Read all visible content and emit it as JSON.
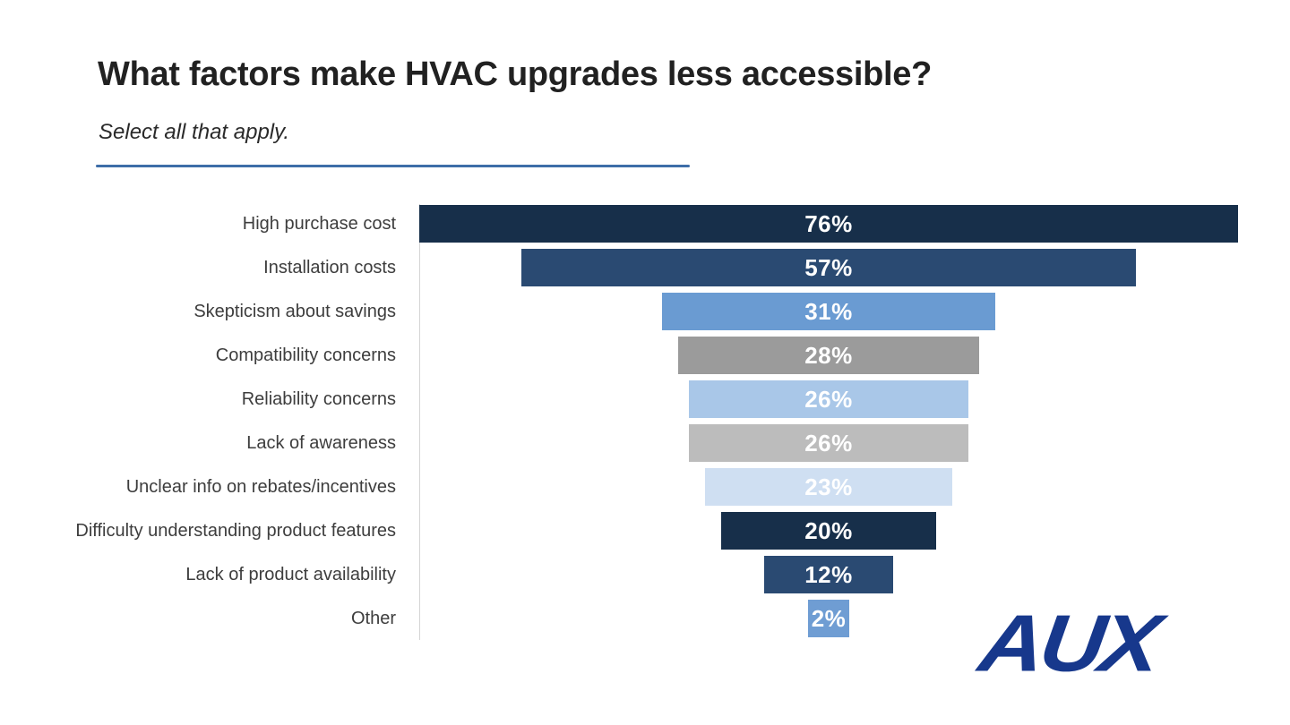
{
  "header": {
    "title": "What factors make HVAC upgrades less accessible?",
    "subtitle": "Select all that apply.",
    "accent_rule_color": "#3e6da8"
  },
  "logo": {
    "text": "AUX",
    "color": "#17388c"
  },
  "chart_data": {
    "type": "bar",
    "orientation": "horizontal",
    "layout": "centered-funnel",
    "title": "What factors make HVAC upgrades less accessible?",
    "subtitle": "Select all that apply.",
    "categories": [
      "High purchase cost",
      "Installation costs",
      "Skepticism about savings",
      "Compatibility concerns",
      "Reliability concerns",
      "Lack of awareness",
      "Unclear info on rebates/incentives",
      "Difficulty understanding product features",
      "Lack of product availability",
      "Other"
    ],
    "values": [
      76,
      57,
      31,
      28,
      26,
      26,
      23,
      20,
      12,
      2
    ],
    "value_labels": [
      "76%",
      "57%",
      "31%",
      "28%",
      "26%",
      "26%",
      "23%",
      "20%",
      "12%",
      "2%"
    ],
    "bar_colors": [
      "#172f4a",
      "#2a4a72",
      "#6a9bd2",
      "#9b9b9b",
      "#a9c7e8",
      "#bcbcbc",
      "#cfdff2",
      "#172f4a",
      "#2a4a72",
      "#6f9dd3"
    ],
    "value_label_color": "#ffffff",
    "category_label_color": "#3d3d3d",
    "axis_line_color": "#d4d4d4",
    "xlabel": "",
    "ylabel": "",
    "xlim": [
      0,
      76
    ],
    "grid": false,
    "legend": false
  }
}
